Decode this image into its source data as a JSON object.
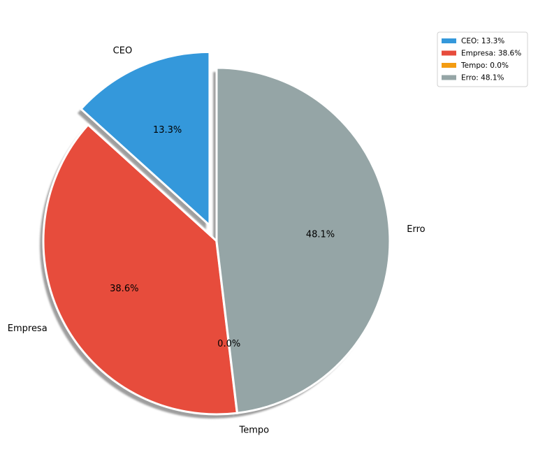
{
  "chart_data": {
    "type": "pie",
    "title": "",
    "start_angle_deg": 90,
    "direction": "counterclockwise",
    "shadow": true,
    "legend_placement": "top-right",
    "slices": [
      {
        "label": "CEO",
        "value": 13.3,
        "pct_label": "13.3%",
        "legend": "CEO: 13.3%",
        "color": "#3498db",
        "explode": 0.1
      },
      {
        "label": "Empresa",
        "value": 38.6,
        "pct_label": "38.6%",
        "legend": "Empresa: 38.6%",
        "color": "#e74c3c",
        "explode": 0.0
      },
      {
        "label": "Tempo",
        "value": 0.0,
        "pct_label": "0.0%",
        "legend": "Tempo: 0.0%",
        "color": "#f39c12",
        "explode": 0.0
      },
      {
        "label": "Erro",
        "value": 48.1,
        "pct_label": "48.1%",
        "legend": "Erro: 48.1%",
        "color": "#95a5a6",
        "explode": 0.0
      }
    ]
  }
}
